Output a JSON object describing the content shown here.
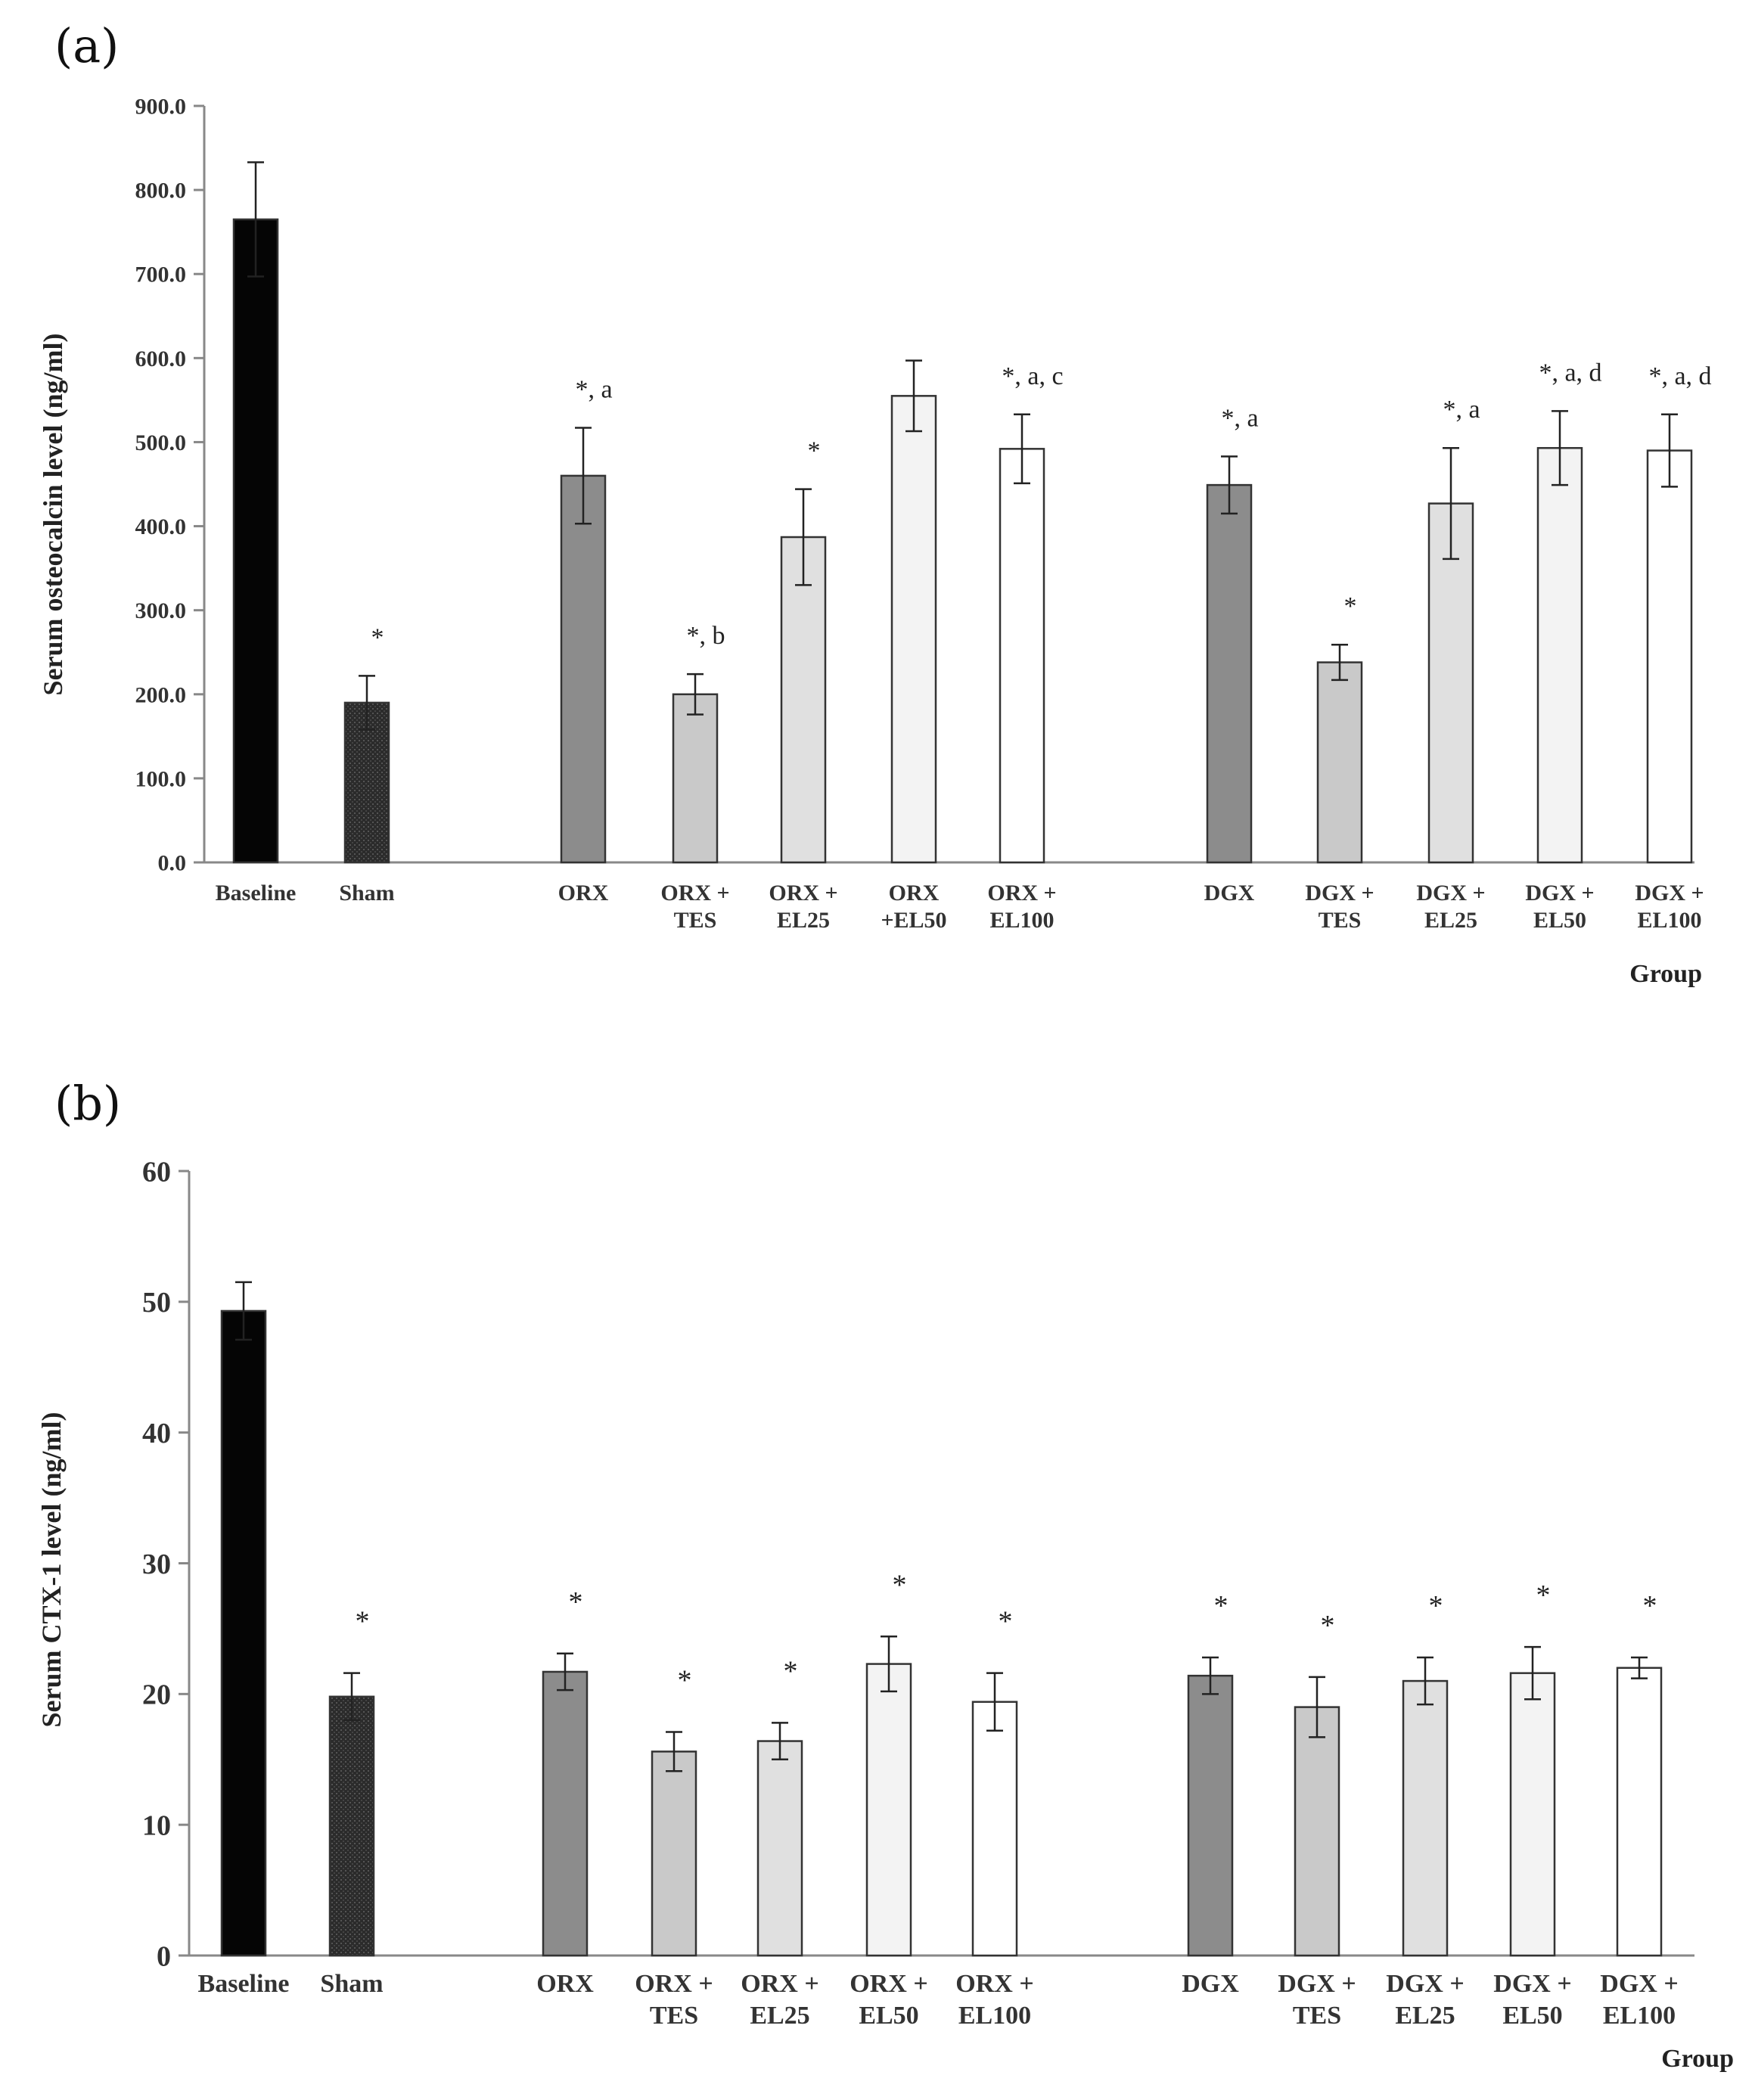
{
  "chart_data": [
    {
      "panel": "(a)",
      "type": "bar",
      "ylabel": "Serum osteocalcin level (ng/ml)",
      "xlabel": "Group",
      "ylim": [
        0,
        900
      ],
      "yticks": [
        "0.0",
        "100.0",
        "200.0",
        "300.0",
        "400.0",
        "500.0",
        "600.0",
        "700.0",
        "800.0",
        "900.0"
      ],
      "categories": [
        [
          "Baseline"
        ],
        [
          "Sham"
        ],
        [
          "ORX"
        ],
        [
          "ORX +",
          "TES"
        ],
        [
          "ORX +",
          "EL25"
        ],
        [
          "ORX",
          "+EL50"
        ],
        [
          "ORX +",
          "EL100"
        ],
        [
          "DGX"
        ],
        [
          "DGX +",
          "TES"
        ],
        [
          "DGX +",
          "EL25"
        ],
        [
          "DGX +",
          "EL50"
        ],
        [
          "DGX +",
          "EL100"
        ]
      ],
      "values": [
        765,
        190,
        460,
        200,
        387,
        555,
        492,
        449,
        238,
        427,
        493,
        490
      ],
      "errors": [
        68,
        32,
        57,
        24,
        57,
        42,
        41,
        34,
        21,
        66,
        44,
        43
      ],
      "annotations": [
        "",
        "*",
        "*, a",
        "*, b",
        "*",
        "",
        "*, a, c",
        "*, a",
        "*",
        "*, a",
        "*, a, d",
        "*, a, d"
      ],
      "fills": [
        "#050505",
        "#2a2a2a",
        "#8c8c8c",
        "#c9c9c9",
        "#e0e0e0",
        "#f3f3f3",
        "#ffffff",
        "#8c8c8c",
        "#c9c9c9",
        "#e0e0e0",
        "#f3f3f3",
        "#ffffff"
      ]
    },
    {
      "panel": "(b)",
      "type": "bar",
      "ylabel": "Serum CTX-1 level (ng/ml)",
      "xlabel": "Group",
      "ylim": [
        0,
        60
      ],
      "yticks": [
        "0",
        "10",
        "20",
        "30",
        "40",
        "50",
        "60"
      ],
      "categories": [
        [
          "Baseline"
        ],
        [
          "Sham"
        ],
        [
          "ORX"
        ],
        [
          "ORX +",
          "TES"
        ],
        [
          "ORX +",
          "EL25"
        ],
        [
          "ORX +",
          "EL50"
        ],
        [
          "ORX +",
          "EL100"
        ],
        [
          "DGX"
        ],
        [
          "DGX +",
          "TES"
        ],
        [
          "DGX +",
          "EL25"
        ],
        [
          "DGX +",
          "EL50"
        ],
        [
          "DGX +",
          "EL100"
        ]
      ],
      "values": [
        49.3,
        19.8,
        21.7,
        15.6,
        16.4,
        22.3,
        19.4,
        21.4,
        19.0,
        21.0,
        21.6,
        22.0
      ],
      "errors": [
        2.2,
        1.8,
        1.4,
        1.5,
        1.4,
        2.1,
        2.2,
        1.4,
        2.3,
        1.8,
        2.0,
        0.8
      ],
      "annotations": [
        "",
        "*",
        "*",
        "*",
        "*",
        "*",
        "*",
        "*",
        "*",
        "*",
        "*",
        "*"
      ],
      "fills": [
        "#050505",
        "#2a2a2a",
        "#8c8c8c",
        "#c9c9c9",
        "#e0e0e0",
        "#f3f3f3",
        "#ffffff",
        "#8c8c8c",
        "#c9c9c9",
        "#e0e0e0",
        "#f3f3f3",
        "#ffffff"
      ]
    }
  ]
}
